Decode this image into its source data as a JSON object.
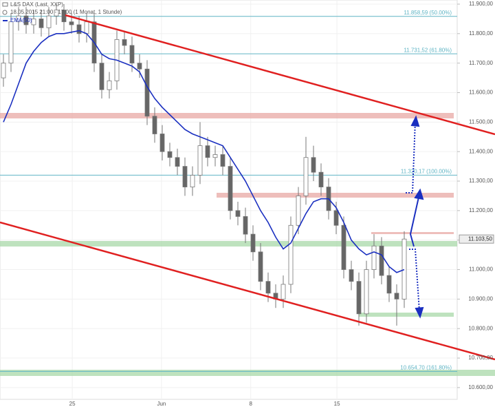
{
  "chart_data": {
    "type": "candlestick",
    "title": "L&S DAX (Last, XXP)",
    "subtitle": "18.05.2015 21:00 - 17:00 (1 Monat, 1 Stunde)",
    "open": [
      11650,
      11700,
      11840,
      11860,
      11830,
      11850,
      11820,
      11860,
      11880,
      11840,
      11830,
      11800,
      11840,
      11700,
      11610,
      11640,
      11780,
      11760,
      11700,
      11680,
      11520,
      11460,
      11400,
      11380,
      11350,
      11280,
      11320,
      11420,
      11380,
      11390,
      11350,
      11200,
      11180,
      11120,
      11060,
      10960,
      10920,
      10900,
      10950,
      11150,
      11250,
      11380,
      11330,
      11280,
      11200,
      11150,
      11000,
      10960,
      10850,
      11000,
      11080,
      10980,
      10920,
      10900
    ],
    "high": [
      11730,
      11870,
      11890,
      11890,
      11880,
      11880,
      11890,
      11900,
      11900,
      11870,
      11860,
      11870,
      11870,
      11730,
      11670,
      11810,
      11810,
      11790,
      11730,
      11710,
      11550,
      11490,
      11430,
      11410,
      11380,
      11350,
      11500,
      11450,
      11420,
      11420,
      11380,
      11230,
      11210,
      11150,
      11090,
      10990,
      10950,
      10980,
      11180,
      11280,
      11450,
      11420,
      11360,
      11310,
      11230,
      11180,
      11030,
      10990,
      11030,
      11120,
      11110,
      11010,
      10950,
      11130
    ],
    "low": [
      11620,
      11670,
      11810,
      11800,
      11800,
      11790,
      11790,
      11830,
      11810,
      11800,
      11770,
      11770,
      11670,
      11580,
      11580,
      11610,
      11730,
      11670,
      11650,
      11490,
      11430,
      11370,
      11350,
      11320,
      11250,
      11250,
      11290,
      11350,
      11350,
      11320,
      11170,
      11150,
      11090,
      11030,
      10930,
      10890,
      10870,
      10870,
      10920,
      11120,
      11220,
      11300,
      11250,
      11170,
      11120,
      10970,
      10930,
      10810,
      10820,
      10970,
      10950,
      10890,
      10810,
      10870
    ],
    "close": [
      11700,
      11840,
      11860,
      11830,
      11850,
      11820,
      11860,
      11880,
      11840,
      11830,
      11800,
      11840,
      11700,
      11610,
      11640,
      11780,
      11760,
      11700,
      11680,
      11520,
      11460,
      11400,
      11380,
      11350,
      11280,
      11320,
      11420,
      11380,
      11390,
      11350,
      11200,
      11180,
      11120,
      11060,
      10960,
      10920,
      10900,
      10950,
      11150,
      11250,
      11380,
      11330,
      11280,
      11200,
      11150,
      11000,
      10960,
      10850,
      11000,
      11080,
      10980,
      10920,
      10900,
      11103.5
    ],
    "series": [
      {
        "name": "EMA(50)",
        "color": "#1a2fc0",
        "values": [
          11500,
          11560,
          11630,
          11700,
          11740,
          11770,
          11790,
          11800,
          11800,
          11805,
          11810,
          11800,
          11770,
          11730,
          11715,
          11710,
          11700,
          11690,
          11670,
          11620,
          11580,
          11550,
          11525,
          11500,
          11475,
          11460,
          11450,
          11440,
          11430,
          11420,
          11380,
          11340,
          11300,
          11250,
          11200,
          11160,
          11110,
          11070,
          11090,
          11140,
          11190,
          11230,
          11240,
          11240,
          11210,
          11160,
          11100,
          11070,
          11050,
          11060,
          11050,
          11010,
          10990,
          11000
        ]
      }
    ],
    "levels": [
      {
        "value": 11858.59,
        "label": "11.858,59 (50.00%)"
      },
      {
        "value": 11731.52,
        "label": "11.731,52 (61.80%)"
      },
      {
        "value": 11320.17,
        "label": "11.320,17 (100.00%)"
      },
      {
        "value": 10654.7,
        "label": "10.654,70 (161.80%)"
      }
    ],
    "last_price": {
      "value": 11103.5,
      "label": "11.103,50"
    },
    "xlim": [
      -0.4545,
      60
    ],
    "xticks": [
      {
        "value": 9.1,
        "label": "25"
      },
      {
        "value": 20.9,
        "label": "Jun"
      },
      {
        "value": 32.7,
        "label": "8"
      },
      {
        "value": 44.1,
        "label": "15"
      }
    ],
    "ylim": [
      10560,
      11914
    ],
    "yticks": [
      {
        "value": 10600,
        "label": "10.600,00"
      },
      {
        "value": 10700,
        "label": "10.700,00"
      },
      {
        "value": 10800,
        "label": "10.800,00"
      },
      {
        "value": 10900,
        "label": "10.900,00"
      },
      {
        "value": 11000,
        "label": "11.000,00"
      },
      {
        "value": 11100,
        "label": "11.100,00"
      },
      {
        "value": 11200,
        "label": "11.200,00"
      },
      {
        "value": 11300,
        "label": "11.300,00"
      },
      {
        "value": 11400,
        "label": "11.400,00"
      },
      {
        "value": 11500,
        "label": "11.500,00"
      },
      {
        "value": 11600,
        "label": "11.600,00"
      },
      {
        "value": 11700,
        "label": "11.700,00"
      },
      {
        "value": 11800,
        "label": "11.800,00"
      },
      {
        "value": 11900,
        "label": "11.900,00"
      }
    ],
    "grid": true,
    "up_color": "#ffffff",
    "down_color": "#666666",
    "wick_color": "#777777",
    "level_color": "#5fb4c4"
  }
}
